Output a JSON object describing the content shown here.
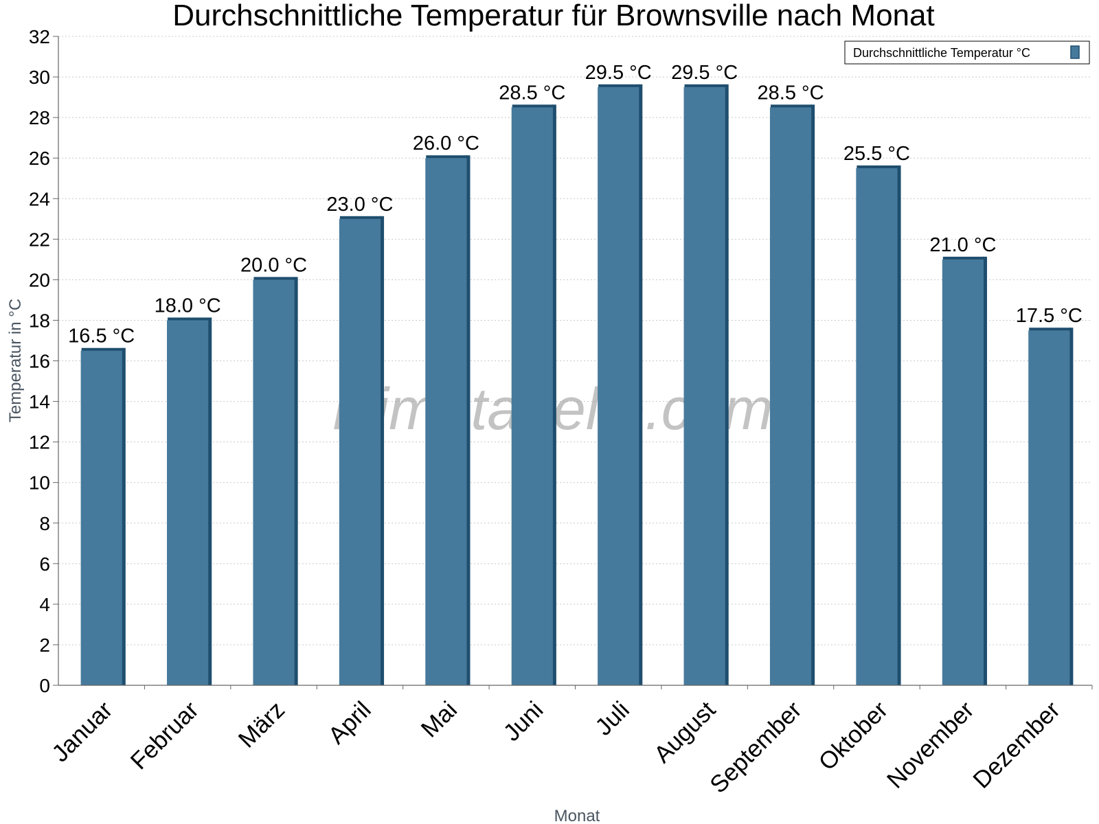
{
  "chart_data": {
    "type": "bar",
    "title": "Durchschnittliche Temperatur für Brownsville nach Monat",
    "xlabel": "Monat",
    "ylabel": "Temperatur in °C",
    "ylim": [
      0,
      32
    ],
    "yticks": [
      0,
      2,
      4,
      6,
      8,
      10,
      12,
      14,
      16,
      18,
      20,
      22,
      24,
      26,
      28,
      30,
      32
    ],
    "grid": true,
    "legend_position": "top-right",
    "categories": [
      "Januar",
      "Februar",
      "März",
      "April",
      "Mai",
      "Juni",
      "Juli",
      "August",
      "September",
      "Oktober",
      "November",
      "Dezember"
    ],
    "series": [
      {
        "name": "Durchschnittliche Temperatur °C",
        "values": [
          16.5,
          18.0,
          20.0,
          23.0,
          26.0,
          28.5,
          29.5,
          29.5,
          28.5,
          25.5,
          21.0,
          17.5
        ],
        "labels": [
          "16.5 °C",
          "18.0 °C",
          "20.0 °C",
          "23.0 °C",
          "26.0 °C",
          "28.5 °C",
          "29.5 °C",
          "29.5 °C",
          "28.5 °C",
          "25.5 °C",
          "21.0 °C",
          "17.5 °C"
        ],
        "color": "#467a9c",
        "edge_color": "#1f4e6e"
      }
    ],
    "watermark": "klimatabelle.com"
  }
}
